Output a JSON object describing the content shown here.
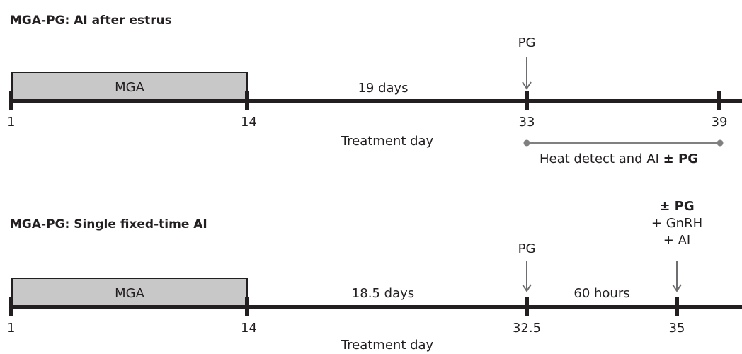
{
  "top": {
    "title": "MGA-PG: AI after estrus",
    "mga_label": "MGA",
    "interval_label": "19 days",
    "pg_label": "PG",
    "day_labels": [
      "1",
      "14",
      "33",
      "39"
    ],
    "axis_label": "Treatment day",
    "range_label_prefix": "Heat detect and AI ",
    "range_label_bold": "± PG"
  },
  "bottom": {
    "title": "MGA-PG: Single fixed-time AI",
    "mga_label": "MGA",
    "interval_label": "18.5 days",
    "pg_label": "PG",
    "hours_label": "60 hours",
    "ai_labels": [
      "± PG",
      "+ GnRH",
      "+ AI"
    ],
    "day_labels": [
      "1",
      "14",
      "32.5",
      "35"
    ],
    "axis_label": "Treatment day"
  },
  "colors": {
    "line": "#231f20",
    "mga_fill": "#c8c8c8",
    "arrow": "#6d6e71",
    "range": "#808080"
  }
}
